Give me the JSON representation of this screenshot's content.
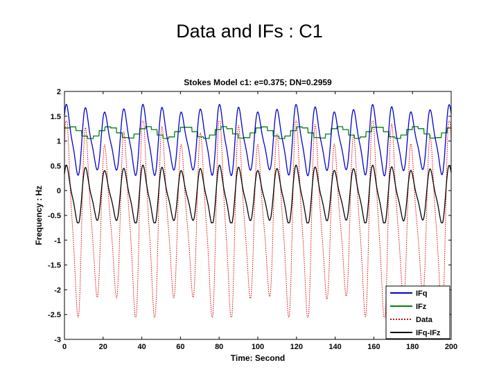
{
  "slide": {
    "title": "Data and IFs : C1"
  },
  "chart_data": {
    "type": "line",
    "title": "Stokes Model c1:  e=0.375;  DN=0.2959",
    "xlabel": "Time: Second",
    "ylabel": "Frequency : Hz",
    "xlim": [
      0,
      200
    ],
    "ylim": [
      -3,
      2
    ],
    "xticks": [
      0,
      20,
      40,
      60,
      80,
      100,
      120,
      140,
      160,
      180,
      200
    ],
    "yticks": [
      2,
      1.5,
      1,
      0.5,
      0,
      -0.5,
      -1,
      -1.5,
      -2,
      -2.5,
      -3
    ],
    "legend_position": "bottom-right",
    "series": [
      {
        "name": "IFq",
        "color": "#0000cc",
        "style": "solid",
        "period": 9.9,
        "mean": 1.0,
        "amplitude": 0.65,
        "env_amp": 0.12,
        "min": 0.2,
        "max": 1.8
      },
      {
        "name": "IFz",
        "color": "#008000",
        "style": "solid-step",
        "period": 19.8,
        "mean": 1.17,
        "amplitude": 0.12,
        "min": 0.8,
        "max": 1.38
      },
      {
        "name": "Data",
        "color": "#dd0000",
        "style": "dotted",
        "period": 9.9,
        "mean": -0.6,
        "amplitude": 1.8,
        "env_amp": 0.17,
        "min": -2.55,
        "max": 1.4
      },
      {
        "name": "IFq-IFz",
        "color": "#000000",
        "style": "solid",
        "period": 9.9,
        "mean": -0.1,
        "amplitude": 0.55,
        "env_amp": 0.1,
        "min": -0.65,
        "max": 0.72
      }
    ]
  }
}
